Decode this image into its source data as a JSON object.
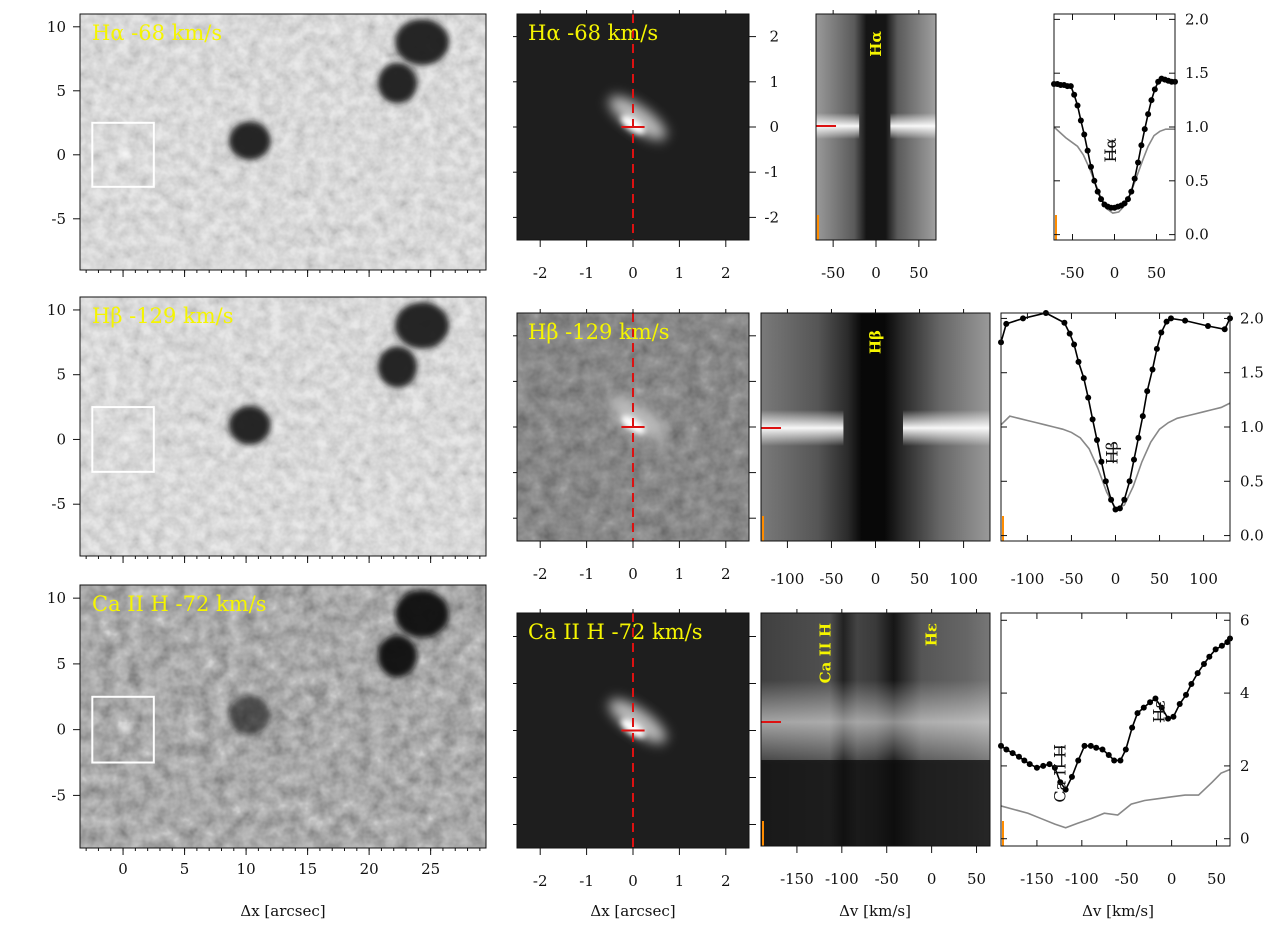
{
  "chart_data": [
    {
      "type": "other",
      "panel": "image-full-halpha",
      "title": "Hα  -68 km/s",
      "xlim": [
        -3.5,
        29.5
      ],
      "ylim": [
        -9,
        11
      ],
      "x_ticks": [
        0,
        5,
        10,
        15,
        20,
        25
      ],
      "y_ticks": [
        -5,
        0,
        5,
        10
      ],
      "box": {
        "x": [
          -2.5,
          2.5
        ],
        "y": [
          -2.5,
          2.5
        ]
      }
    },
    {
      "type": "other",
      "panel": "image-zoom-halpha",
      "title": "Hα  -68 km/s",
      "xlim": [
        -2.5,
        2.5
      ],
      "ylim": [
        -2.5,
        2.5
      ],
      "x_ticks": [
        -2,
        -1,
        0,
        1,
        2
      ],
      "y_ticks": [
        -2,
        -1,
        0,
        1,
        2
      ]
    },
    {
      "type": "heatmap",
      "panel": "xt-halpha",
      "xlim": [
        -70,
        70
      ],
      "x_ticks": [
        -50,
        0,
        50
      ],
      "label": "Hα"
    },
    {
      "type": "line",
      "panel": "profile-halpha",
      "label": "Hα",
      "xlim": [
        -72,
        72
      ],
      "ylim": [
        -0.05,
        2.05
      ],
      "x_ticks": [
        -50,
        0,
        50
      ],
      "y_ticks": [
        "0.0",
        "0.5",
        "1.0",
        "1.5",
        "2.0"
      ],
      "series": [
        {
          "name": "",
          "x": [
            -72,
            -68,
            -64,
            -60,
            -56,
            -52,
            -48,
            -44,
            -40,
            -36,
            -32,
            -28,
            -24,
            -20,
            -16,
            -12,
            -8,
            -4,
            0,
            4,
            8,
            12,
            16,
            20,
            24,
            28,
            32,
            36,
            40,
            44,
            48,
            52,
            56,
            60,
            64,
            68,
            72
          ],
          "values": [
            1.4,
            1.4,
            1.39,
            1.39,
            1.38,
            1.38,
            1.3,
            1.2,
            1.06,
            0.93,
            0.78,
            0.63,
            0.5,
            0.4,
            0.33,
            0.28,
            0.26,
            0.25,
            0.25,
            0.26,
            0.27,
            0.29,
            0.33,
            0.4,
            0.52,
            0.67,
            0.83,
            0.98,
            1.12,
            1.25,
            1.35,
            1.42,
            1.45,
            1.44,
            1.43,
            1.42,
            1.42
          ]
        },
        {
          "name": "",
          "x": [
            -72,
            -65,
            -58,
            -51,
            -44,
            -37,
            -30,
            -23,
            -16,
            -9,
            -2,
            5,
            12,
            19,
            26,
            33,
            40,
            47,
            54,
            61,
            72
          ],
          "values": [
            1.0,
            0.95,
            0.9,
            0.86,
            0.82,
            0.74,
            0.62,
            0.48,
            0.34,
            0.24,
            0.2,
            0.21,
            0.27,
            0.38,
            0.53,
            0.68,
            0.82,
            0.92,
            0.96,
            0.98,
            0.98
          ]
        }
      ]
    },
    {
      "type": "other",
      "panel": "image-full-hbeta",
      "title": "Hβ -129 km/s",
      "xlim": [
        -3.5,
        29.5
      ],
      "ylim": [
        -9,
        11
      ],
      "x_ticks": [
        0,
        5,
        10,
        15,
        20,
        25
      ],
      "y_ticks": [
        -5,
        0,
        5,
        10
      ],
      "box": {
        "x": [
          -2.5,
          2.5
        ],
        "y": [
          -2.5,
          2.5
        ]
      }
    },
    {
      "type": "other",
      "panel": "image-zoom-hbeta",
      "title": "Hβ -129 km/s",
      "xlim": [
        -2.5,
        2.5
      ],
      "ylim": [
        -2.5,
        2.5
      ],
      "x_ticks": [
        -2,
        -1,
        0,
        1,
        2
      ],
      "y_ticks": [
        -2,
        -1,
        0,
        1,
        2
      ]
    },
    {
      "type": "heatmap",
      "panel": "xt-hbeta",
      "xlim": [
        -130,
        130
      ],
      "x_ticks": [
        -100,
        -50,
        0,
        50,
        100
      ],
      "label": "Hβ"
    },
    {
      "type": "line",
      "panel": "profile-hbeta",
      "label": "Hβ",
      "xlim": [
        -130,
        130
      ],
      "ylim": [
        -0.05,
        2.05
      ],
      "x_ticks": [
        -100,
        -50,
        0,
        50,
        100
      ],
      "y_ticks": [
        "0.0",
        "0.5",
        "1.0",
        "1.5",
        "2.0"
      ],
      "series": [
        {
          "name": "",
          "x": [
            -130,
            -124,
            -105,
            -79,
            -58,
            -52,
            -47,
            -42,
            -36,
            -31,
            -26,
            -21,
            -16,
            -11,
            -5,
            0,
            5,
            10,
            16,
            21,
            26,
            31,
            36,
            42,
            47,
            52,
            58,
            63,
            79,
            105,
            124,
            130
          ],
          "values": [
            1.78,
            1.95,
            2.0,
            2.05,
            1.96,
            1.86,
            1.76,
            1.6,
            1.45,
            1.27,
            1.07,
            0.88,
            0.68,
            0.5,
            0.33,
            0.24,
            0.25,
            0.33,
            0.5,
            0.7,
            0.9,
            1.1,
            1.33,
            1.53,
            1.72,
            1.87,
            1.97,
            2.0,
            1.98,
            1.93,
            1.9,
            2.0
          ]
        },
        {
          "name": "",
          "x": [
            -130,
            -120,
            -110,
            -100,
            -90,
            -80,
            -70,
            -60,
            -50,
            -40,
            -30,
            -20,
            -10,
            0,
            10,
            20,
            30,
            40,
            50,
            60,
            70,
            80,
            90,
            100,
            110,
            120,
            130
          ],
          "values": [
            1.02,
            1.1,
            1.08,
            1.06,
            1.04,
            1.02,
            1.0,
            0.98,
            0.95,
            0.9,
            0.8,
            0.62,
            0.4,
            0.25,
            0.28,
            0.45,
            0.68,
            0.86,
            0.98,
            1.04,
            1.08,
            1.1,
            1.12,
            1.14,
            1.16,
            1.18,
            1.22
          ]
        }
      ]
    },
    {
      "type": "other",
      "panel": "image-full-caiih",
      "title": "Ca II H  -72 km/s",
      "xlim": [
        -3.5,
        29.5
      ],
      "ylim": [
        -9,
        11
      ],
      "x_ticks": [
        0,
        5,
        10,
        15,
        20,
        25
      ],
      "y_ticks": [
        -5,
        0,
        5,
        10
      ],
      "box": {
        "x": [
          -2.5,
          2.5
        ],
        "y": [
          -2.5,
          2.5
        ]
      }
    },
    {
      "type": "other",
      "panel": "image-zoom-caiih",
      "title": "Ca II H  -72 km/s",
      "xlim": [
        -2.5,
        2.5
      ],
      "ylim": [
        -2.5,
        2.5
      ],
      "x_ticks": [
        -2,
        -1,
        0,
        1,
        2
      ],
      "y_ticks": [
        -2,
        -1,
        0,
        1,
        2
      ]
    },
    {
      "type": "heatmap",
      "panel": "xt-caiih",
      "xlim": [
        -190,
        65
      ],
      "x_ticks": [
        -150,
        -100,
        -50,
        0,
        50
      ],
      "labels": [
        "Ca II H",
        "Hε"
      ]
    },
    {
      "type": "line",
      "panel": "profile-caiih",
      "labels": [
        "Ca II H",
        "Hε"
      ],
      "xlim": [
        -190,
        65
      ],
      "ylim": [
        -0.2,
        6.2
      ],
      "x_ticks": [
        -150,
        -100,
        -50,
        0,
        50
      ],
      "y_ticks": [
        "0",
        "2",
        "4",
        "6"
      ],
      "series": [
        {
          "name": "",
          "x": [
            -190,
            -184,
            -177,
            -170,
            -164,
            -158,
            -150,
            -143,
            -136,
            -130,
            -124,
            -118,
            -111,
            -104,
            -97,
            -90,
            -84,
            -77,
            -70,
            -64,
            -57,
            -51,
            -44,
            -38,
            -31,
            -24,
            -18,
            -11,
            -4,
            2,
            9,
            16,
            22,
            29,
            36,
            42,
            49,
            56,
            62,
            65
          ],
          "values": [
            2.55,
            2.45,
            2.35,
            2.25,
            2.15,
            2.05,
            1.95,
            2.0,
            2.05,
            1.95,
            1.55,
            1.35,
            1.7,
            2.15,
            2.55,
            2.55,
            2.5,
            2.45,
            2.3,
            2.15,
            2.15,
            2.45,
            3.05,
            3.45,
            3.6,
            3.75,
            3.85,
            3.6,
            3.3,
            3.35,
            3.7,
            3.95,
            4.25,
            4.55,
            4.8,
            5.0,
            5.2,
            5.3,
            5.4,
            5.5
          ]
        },
        {
          "name": "",
          "x": [
            -190,
            -175,
            -160,
            -145,
            -130,
            -118,
            -105,
            -90,
            -75,
            -60,
            -45,
            -30,
            -15,
            0,
            15,
            30,
            45,
            55,
            65
          ],
          "values": [
            0.9,
            0.8,
            0.7,
            0.55,
            0.4,
            0.3,
            0.42,
            0.55,
            0.7,
            0.65,
            0.95,
            1.05,
            1.1,
            1.15,
            1.2,
            1.2,
            1.55,
            1.8,
            1.9
          ]
        }
      ]
    }
  ],
  "labels": {
    "dx": "Δx [arcsec]",
    "dv": "Δv [km/s]"
  },
  "colors": {
    "title_text": "#f5f500",
    "marker": "#dd1111",
    "box": "#ffffff",
    "profile_main": "#000000",
    "profile_ref": "#888888",
    "edge_tick": "#ff8c00"
  }
}
